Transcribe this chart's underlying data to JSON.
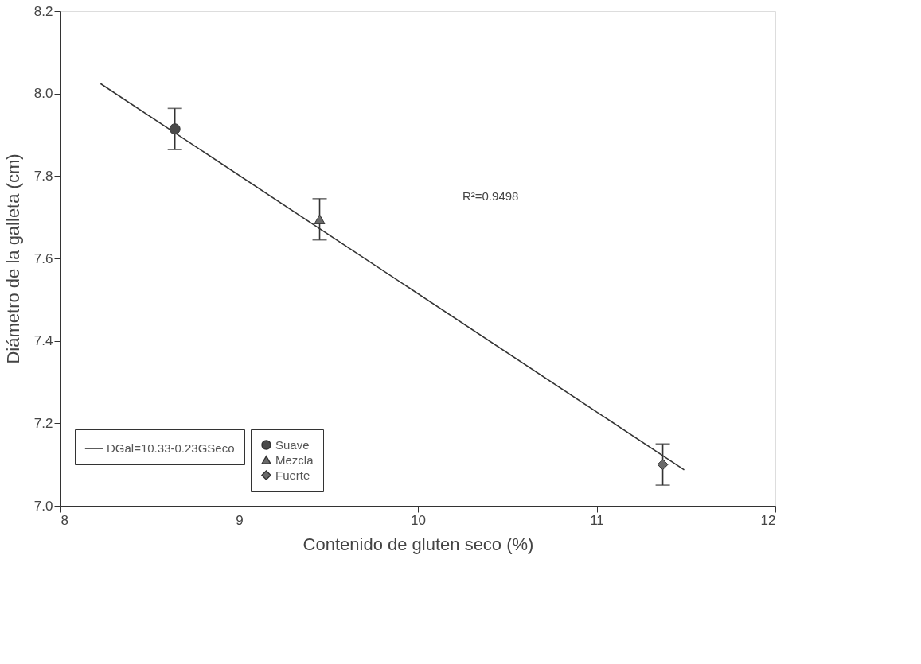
{
  "chart_data": {
    "type": "scatter",
    "xlabel": "Contenido de gluten seco (%)",
    "ylabel": "Diámetro de la galleta (cm)",
    "xlim": [
      8,
      12
    ],
    "xticks": [
      8,
      9,
      10,
      11,
      12
    ],
    "ylim": [
      7.0,
      8.2
    ],
    "yticks": [
      {
        "value": 7.0,
        "label": "7.0"
      },
      {
        "value": 7.2,
        "label": "7.2"
      },
      {
        "value": 7.4,
        "label": "7.4"
      },
      {
        "value": 7.6,
        "label": "7.6"
      },
      {
        "value": 7.8,
        "label": "7.8"
      },
      {
        "value": 8.0,
        "label": "8.0"
      },
      {
        "value": 8.2,
        "label": "8.2"
      }
    ],
    "grid": false,
    "legend": "bottom left",
    "annotations": [
      "R²=0.9498"
    ],
    "series": [
      {
        "name": "Suave",
        "marker": "circle",
        "color": "#4a4a4a",
        "x": [
          8.64
        ],
        "values": [
          7.914
        ],
        "errors": [
          0.05
        ]
      },
      {
        "name": "Mezcla",
        "marker": "triangle",
        "color": "#6a6a6a",
        "x": [
          9.45
        ],
        "values": [
          7.695
        ],
        "errors": [
          0.05
        ]
      },
      {
        "name": "Fuerte",
        "marker": "diamond",
        "color": "#6a6a6a",
        "x": [
          11.37
        ],
        "values": [
          7.1
        ],
        "errors": [
          0.05
        ]
      },
      {
        "name": "DGal=10.33-0.23GSeco",
        "type": "line",
        "line_style": "solid",
        "color": "#333333",
        "x": [
          8.224,
          11.49
        ],
        "values": [
          8.024,
          7.087
        ]
      }
    ]
  }
}
